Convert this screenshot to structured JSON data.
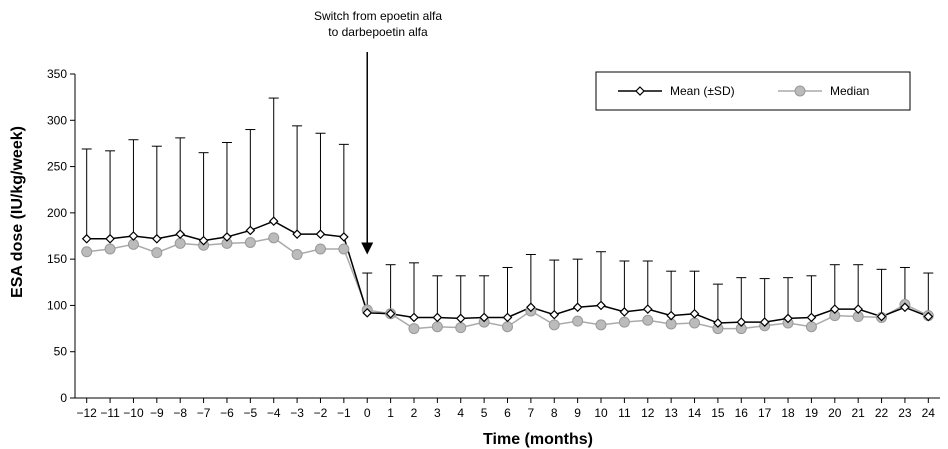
{
  "chart_data": {
    "type": "line",
    "title": "",
    "xlabel": "Time (months)",
    "ylabel": "ESA dose (IU/kg/week)",
    "x": [
      -12,
      -11,
      -10,
      -9,
      -8,
      -7,
      -6,
      -5,
      -4,
      -3,
      -2,
      -1,
      0,
      1,
      2,
      3,
      4,
      5,
      6,
      7,
      8,
      9,
      10,
      11,
      12,
      13,
      14,
      15,
      16,
      17,
      18,
      19,
      20,
      21,
      22,
      23,
      24
    ],
    "xlim": [
      -12.5,
      24.5
    ],
    "ylim": [
      0,
      350
    ],
    "yticks": [
      0,
      50,
      100,
      150,
      200,
      250,
      300,
      350
    ],
    "grid": false,
    "legend_position": "top-right",
    "series": [
      {
        "name": "Mean (±SD)",
        "color": "#000000",
        "marker": "open-diamond",
        "values": [
          172,
          172,
          175,
          172,
          177,
          170,
          174,
          181,
          191,
          177,
          177,
          174,
          92,
          91,
          87,
          87,
          86,
          87,
          87,
          98,
          90,
          98,
          100,
          93,
          96,
          89,
          91,
          81,
          82,
          82,
          86,
          87,
          96,
          96,
          88,
          98,
          88
        ],
        "upper_sd": [
          269,
          267,
          279,
          272,
          281,
          265,
          276,
          290,
          324,
          294,
          286,
          274,
          135,
          144,
          146,
          132,
          132,
          132,
          141,
          155,
          149,
          150,
          158,
          148,
          148,
          137,
          137,
          123,
          130,
          129,
          130,
          132,
          144,
          144,
          139,
          141,
          135
        ]
      },
      {
        "name": "Median",
        "color": "#aaaaaa",
        "marker": "filled-circle",
        "values": [
          158,
          161,
          166,
          157,
          167,
          165,
          167,
          168,
          173,
          155,
          161,
          161,
          95,
          91,
          75,
          77,
          76,
          82,
          77,
          94,
          79,
          83,
          79,
          82,
          84,
          80,
          81,
          75,
          75,
          78,
          81,
          77,
          89,
          88,
          87,
          101,
          89
        ]
      }
    ],
    "annotation": {
      "lines": [
        "Switch from epoetin alfa",
        "to darbepoetin alfa"
      ],
      "x": 0,
      "arrow_to_y": 155
    }
  }
}
